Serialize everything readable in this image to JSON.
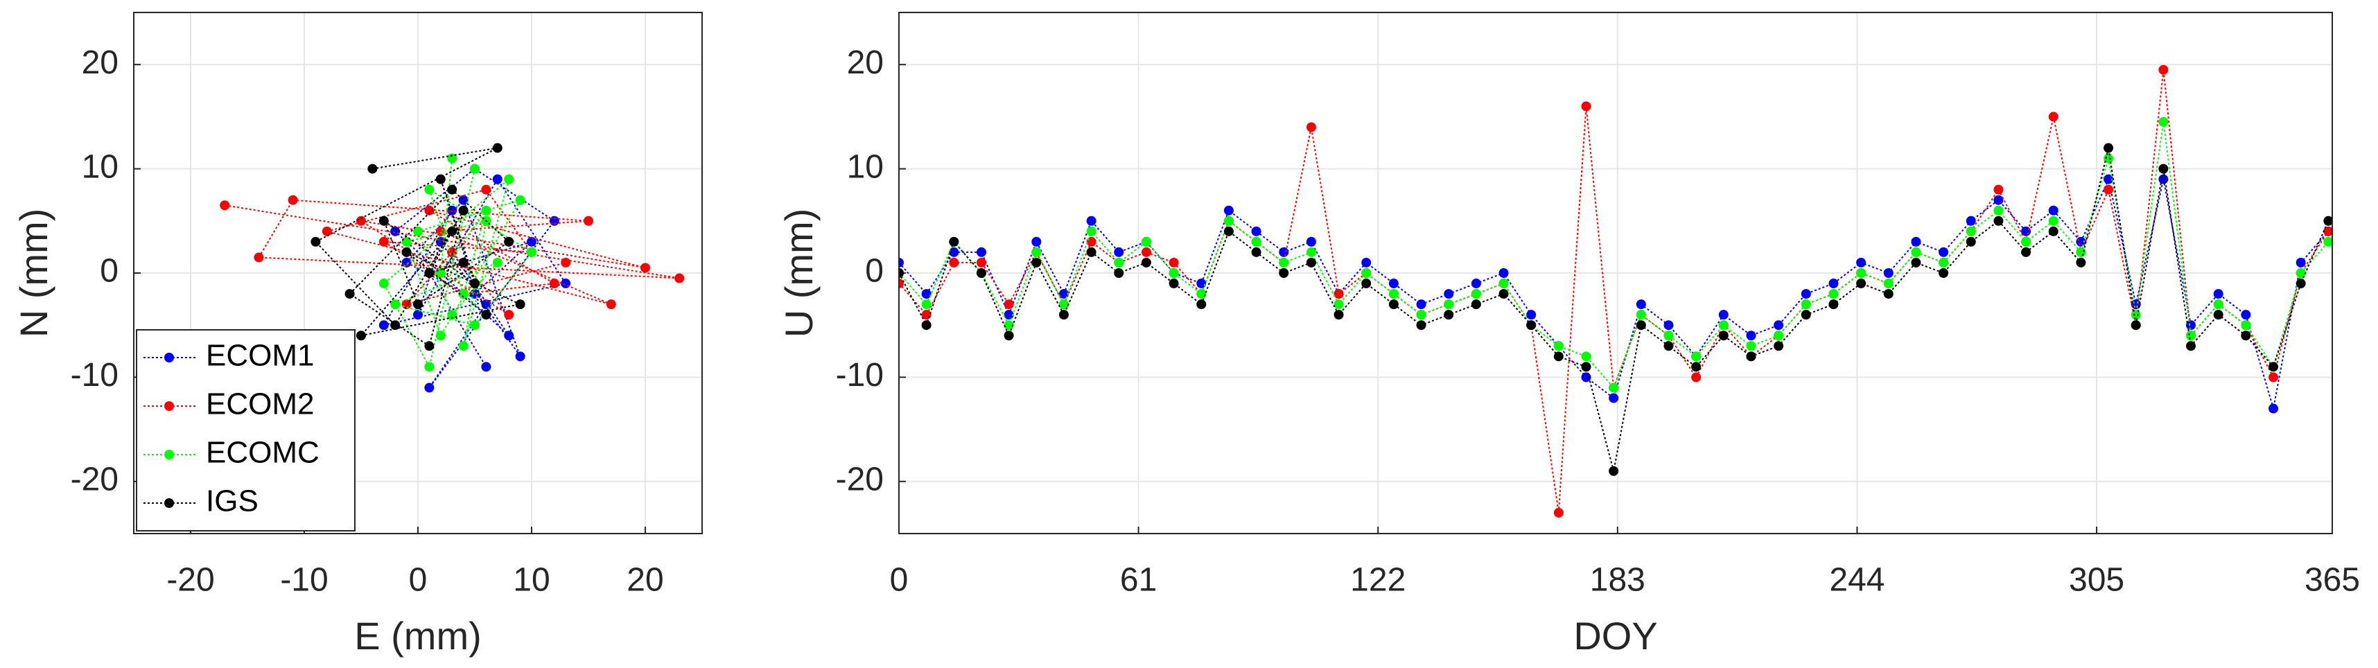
{
  "chart_data": [
    {
      "type": "scatter",
      "xlabel": "E (mm)",
      "ylabel": "N (mm)",
      "xlim": [
        -25,
        25
      ],
      "ylim": [
        -25,
        25
      ],
      "xticks": [
        -20,
        -10,
        0,
        10,
        20
      ],
      "yticks": [
        -20,
        -10,
        0,
        10,
        20
      ],
      "grid": true,
      "legend": "lower left",
      "series": [
        {
          "name": "ECOM1",
          "color": "#0000ff",
          "x": [
            3,
            8,
            -2,
            5,
            12,
            1,
            6,
            -1,
            4,
            9,
            2,
            0,
            7,
            13,
            -3,
            3,
            5,
            10,
            1,
            6
          ],
          "values": [
            2,
            -6,
            4,
            10,
            5,
            -11,
            -3,
            1,
            7,
            -8,
            3,
            -4,
            9,
            -1,
            -5,
            6,
            -2,
            3,
            0,
            -9
          ]
        },
        {
          "name": "ECOM2",
          "color": "#ff0000",
          "x": [
            -17,
            23,
            -14,
            -11,
            15,
            2,
            17,
            -8,
            6,
            10,
            -3,
            4,
            12,
            1,
            20,
            -5,
            8,
            3,
            -1,
            13
          ],
          "values": [
            6.5,
            -0.5,
            1.5,
            7,
            5,
            4,
            -3,
            4,
            8,
            2,
            3,
            -2,
            -1,
            6,
            0.5,
            5,
            -4,
            2,
            -3,
            1
          ]
        },
        {
          "name": "ECOMC",
          "color": "#00ff00",
          "x": [
            5,
            1,
            -3,
            8,
            4,
            6,
            -1,
            2,
            9,
            0,
            3,
            7,
            -2,
            5,
            10,
            1,
            4,
            6,
            2,
            3
          ],
          "values": [
            10,
            -9,
            -1,
            9,
            -7,
            5,
            3,
            -6,
            7,
            4,
            -4,
            1,
            -3,
            -5,
            2,
            8,
            -2,
            6,
            0,
            11
          ]
        },
        {
          "name": "IGS",
          "color": "#000000",
          "x": [
            -4,
            7,
            -9,
            -2,
            4,
            1,
            -6,
            3,
            8,
            0,
            -3,
            5,
            2,
            6,
            -1,
            9,
            -5,
            3,
            1,
            4
          ],
          "values": [
            10,
            12,
            3,
            -5,
            6,
            -7,
            -2,
            8,
            3,
            -3,
            5,
            -1,
            9,
            -4,
            2,
            -3,
            -6,
            4,
            0,
            1
          ]
        }
      ]
    },
    {
      "type": "line",
      "xlabel": "DOY",
      "ylabel": "U (mm)",
      "xlim": [
        0,
        365
      ],
      "ylim": [
        -25,
        25
      ],
      "xticks": [
        0,
        61,
        122,
        183,
        244,
        305,
        365
      ],
      "yticks": [
        -20,
        -10,
        0,
        10,
        20
      ],
      "grid": true,
      "x": [
        0,
        7,
        14,
        21,
        28,
        35,
        42,
        49,
        56,
        63,
        70,
        77,
        84,
        91,
        98,
        105,
        112,
        119,
        126,
        133,
        140,
        147,
        154,
        161,
        168,
        175,
        182,
        189,
        196,
        203,
        210,
        217,
        224,
        231,
        238,
        245,
        252,
        259,
        266,
        273,
        280,
        287,
        294,
        301,
        308,
        315,
        322,
        329,
        336,
        343,
        350,
        357,
        364
      ],
      "series": [
        {
          "color": "#0000ff",
          "values": [
            1,
            -2,
            2,
            2,
            -4,
            3,
            -2,
            5,
            2,
            3,
            0,
            -1,
            6,
            4,
            2,
            3,
            -2,
            1,
            -1,
            -3,
            -2,
            -1,
            0,
            -4,
            -7,
            -10,
            -12,
            -3,
            -5,
            -8,
            -4,
            -6,
            -5,
            -2,
            -1,
            1,
            0,
            3,
            2,
            5,
            7,
            4,
            6,
            3,
            9,
            -3,
            9,
            -5,
            -2,
            -4,
            -13,
            1,
            4
          ]
        },
        {
          "color": "#ff0000",
          "values": [
            -1,
            -4,
            1,
            1,
            -3,
            2,
            -3,
            3,
            1,
            2,
            1,
            -2,
            5,
            3,
            1,
            14,
            -2,
            0,
            -2,
            -4,
            -3,
            -2,
            -1,
            -5,
            -23,
            16,
            -11,
            -4,
            -6,
            -10,
            -5,
            -8,
            -6,
            -3,
            -2,
            0,
            -1,
            2,
            1,
            4,
            8,
            3,
            15,
            2,
            8,
            -5,
            19.5,
            -6,
            -3,
            -5,
            -10,
            0,
            4
          ]
        },
        {
          "color": "#00ff00",
          "values": [
            0,
            -3,
            3,
            0,
            -5,
            2,
            -3,
            4,
            1,
            3,
            0,
            -2,
            5,
            3,
            1,
            2,
            -3,
            0,
            -2,
            -4,
            -3,
            -2,
            -1,
            -5,
            -7,
            -8,
            -11,
            -4,
            -6,
            -8,
            -5,
            -7,
            -6,
            -3,
            -2,
            0,
            -1,
            2,
            1,
            4,
            6,
            3,
            5,
            2,
            11,
            -4,
            14.5,
            -6,
            -3,
            -5,
            -9,
            0,
            3
          ]
        },
        {
          "color": "#000000",
          "values": [
            0,
            -5,
            3,
            0,
            -6,
            1,
            -4,
            2,
            0,
            1,
            -1,
            -3,
            4,
            2,
            0,
            1,
            -4,
            -1,
            -3,
            -5,
            -4,
            -3,
            -2,
            -5,
            -8,
            -9,
            -19,
            -5,
            -7,
            -9,
            -6,
            -8,
            -7,
            -4,
            -3,
            -1,
            -2,
            1,
            0,
            3,
            5,
            2,
            4,
            1,
            12,
            -5,
            10,
            -7,
            -4,
            -6,
            -9,
            -1,
            5
          ]
        }
      ]
    }
  ]
}
